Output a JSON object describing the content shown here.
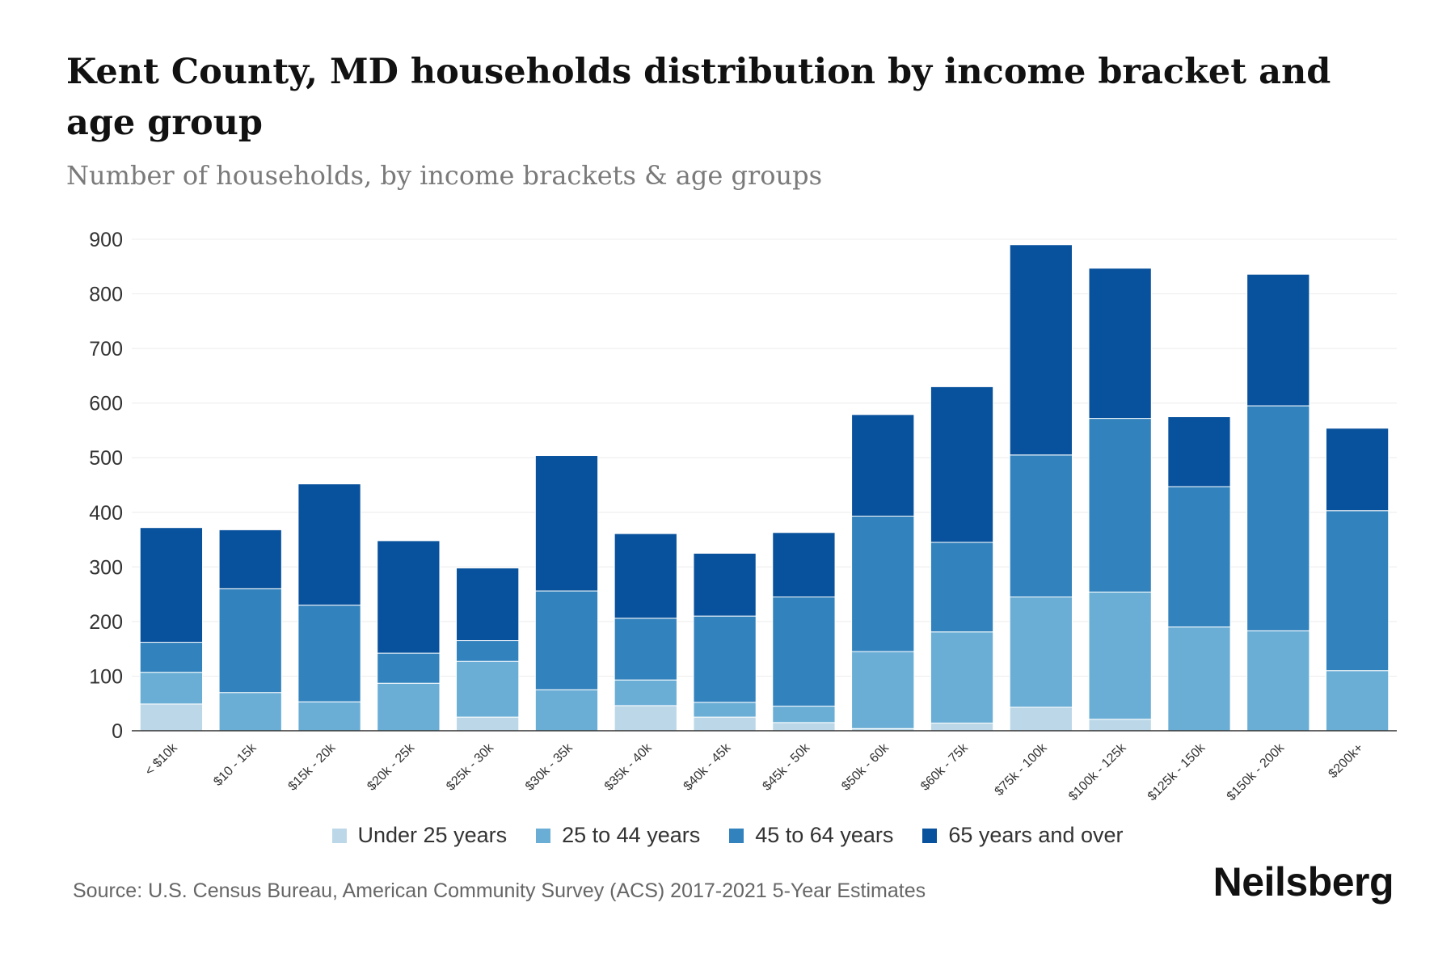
{
  "header": {
    "title": "Kent County, MD households distribution by income bracket and age group",
    "subtitle": "Number of households, by income brackets & age groups"
  },
  "footer": {
    "source": "Source: U.S. Census Bureau, American Community Survey (ACS) 2017-2021 5-Year Estimates",
    "brand": "Neilsberg"
  },
  "chart_data": {
    "type": "bar",
    "stacked": true,
    "title": "Kent County, MD households distribution by income bracket and age group",
    "subtitle": "Number of households, by income brackets & age groups",
    "xlabel": "",
    "ylabel": "",
    "ylim": [
      0,
      900
    ],
    "yticks": [
      0,
      100,
      200,
      300,
      400,
      500,
      600,
      700,
      800,
      900
    ],
    "grid": true,
    "legend_position": "bottom-center",
    "categories": [
      "< $10k",
      "$10 - 15k",
      "$15k - 20k",
      "$20k - 25k",
      "$25k - 30k",
      "$30k - 35k",
      "$35k - 40k",
      "$40k - 45k",
      "$45k - 50k",
      "$50k - 60k",
      "$60k - 75k",
      "$75k - 100k",
      "$100k - 125k",
      "$125k - 150k",
      "$150k - 200k",
      "$200k+"
    ],
    "series": [
      {
        "name": "Under 25 years",
        "color": "#bcd8e8",
        "values": [
          49,
          0,
          0,
          0,
          25,
          0,
          46,
          25,
          15,
          4,
          14,
          43,
          21,
          0,
          0,
          0
        ]
      },
      {
        "name": "25 to 44 years",
        "color": "#6aaed6",
        "values": [
          58,
          70,
          53,
          87,
          102,
          75,
          47,
          27,
          30,
          141,
          167,
          202,
          233,
          190,
          183,
          110
        ]
      },
      {
        "name": "45 to 64 years",
        "color": "#3282bd",
        "values": [
          55,
          190,
          177,
          55,
          38,
          181,
          113,
          158,
          200,
          248,
          164,
          260,
          318,
          257,
          412,
          293
        ]
      },
      {
        "name": "65 years and over",
        "color": "#08519c",
        "values": [
          210,
          108,
          222,
          206,
          133,
          248,
          155,
          115,
          118,
          186,
          285,
          385,
          275,
          128,
          241,
          151
        ]
      }
    ]
  }
}
